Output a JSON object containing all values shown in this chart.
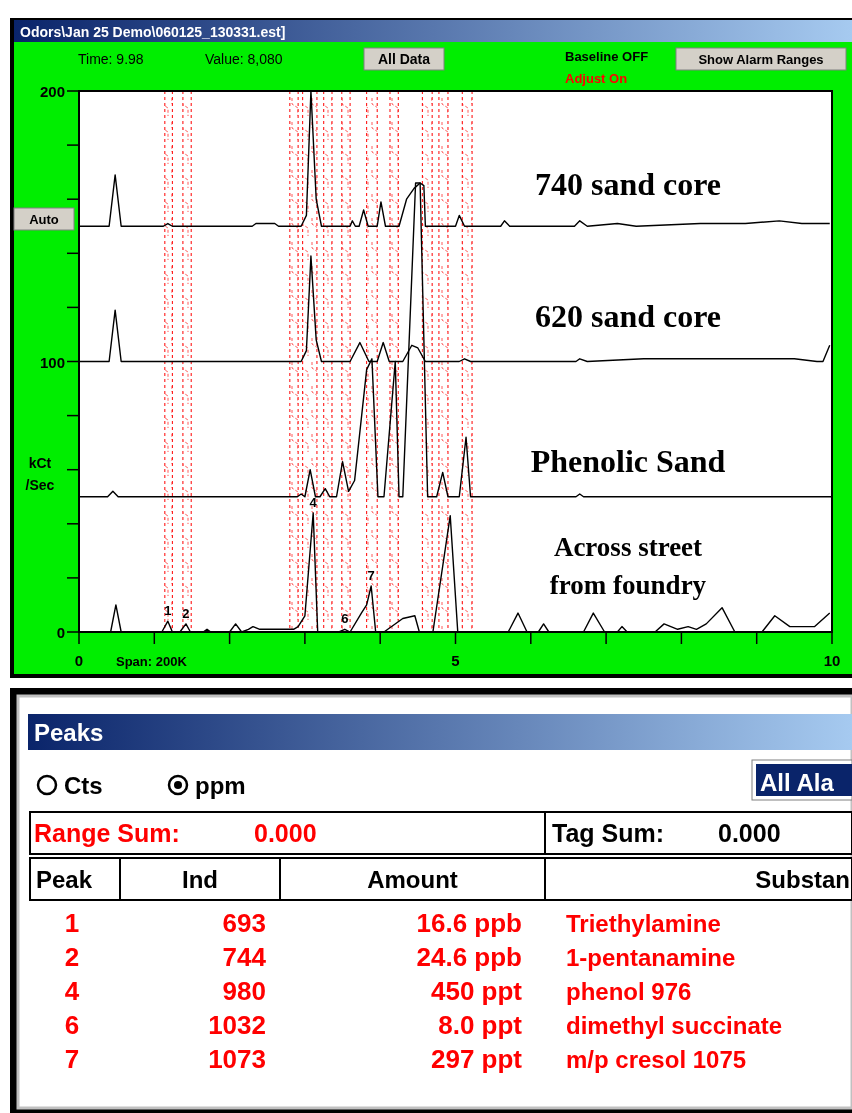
{
  "chart_data": [
    {
      "type": "line",
      "title": "Odors\\Jan 25 Demo\\060125_130331.est]",
      "ylabel": "kCt /Sec",
      "xlim": [
        0,
        10
      ],
      "ylim": [
        0,
        200
      ],
      "xticks": [
        0,
        {
          "value": 1,
          "label": null
        },
        {
          "value": 2,
          "label": null
        },
        {
          "value": 3,
          "label": null
        },
        {
          "value": 4,
          "label": null
        },
        5,
        {
          "value": 6,
          "label": null
        },
        {
          "value": 7,
          "label": null
        },
        {
          "value": 8,
          "label": null
        },
        {
          "value": 9,
          "label": null
        },
        10
      ],
      "yticks": [
        0,
        {
          "value": 20,
          "label": null
        },
        {
          "value": 40,
          "label": null
        },
        {
          "value": 60,
          "label": null
        },
        {
          "value": 80,
          "label": null
        },
        100,
        {
          "value": 120,
          "label": null
        },
        {
          "value": 140,
          "label": null
        },
        {
          "value": 160,
          "label": null
        },
        {
          "value": 180,
          "label": null
        },
        200
      ],
      "bands": [
        {
          "axis": "x",
          "from": 1.14,
          "to": 1.24,
          "color": "#ff0000"
        },
        {
          "axis": "x",
          "from": 1.38,
          "to": 1.49,
          "color": "#ff0000"
        },
        {
          "axis": "x",
          "from": 2.8,
          "to": 2.91,
          "color": "#ff0000"
        },
        {
          "axis": "x",
          "from": 2.97,
          "to": 3.16,
          "color": "#ff0000"
        },
        {
          "axis": "x",
          "from": 3.25,
          "to": 3.36,
          "color": "#ff0000"
        },
        {
          "axis": "x",
          "from": 3.49,
          "to": 3.6,
          "color": "#ff0000"
        },
        {
          "axis": "x",
          "from": 3.82,
          "to": 3.96,
          "color": "#ff0000"
        },
        {
          "axis": "x",
          "from": 4.13,
          "to": 4.24,
          "color": "#ff0000"
        },
        {
          "axis": "x",
          "from": 4.56,
          "to": 4.69,
          "color": "#ff0000"
        },
        {
          "axis": "x",
          "from": 4.78,
          "to": 4.9,
          "color": "#ff0000"
        },
        {
          "axis": "x",
          "from": 5.09,
          "to": 5.22,
          "color": "#ff0000"
        }
      ],
      "series": [
        {
          "name": "740 sand core",
          "color": "#000000",
          "x": [
            0,
            0.4,
            0.48,
            0.56,
            1.12,
            1.18,
            1.24,
            2.3,
            2.35,
            2.6,
            2.65,
            2.95,
            3.02,
            3.08,
            3.15,
            3.22,
            3.6,
            3.63,
            3.67,
            3.72,
            3.78,
            3.84,
            3.96,
            4.01,
            4.07,
            4.25,
            4.35,
            4.45,
            4.53,
            4.58,
            4.6,
            4.66,
            5.0,
            5.05,
            5.12,
            5.6,
            5.65,
            5.72,
            6.58,
            6.65,
            6.75,
            7.15,
            7.4,
            8.25,
            8.85,
            9.3,
            9.6,
            9.97
          ],
          "values": [
            150,
            150,
            169,
            150,
            150,
            151,
            150,
            150,
            151,
            151,
            150,
            150,
            154,
            200,
            160,
            150,
            150,
            152,
            150,
            150,
            156,
            150,
            150,
            159,
            150,
            150,
            160,
            164,
            166,
            165,
            150,
            150,
            150,
            154,
            150,
            150,
            152,
            150,
            150,
            152,
            150,
            151,
            150,
            151,
            151,
            152,
            151,
            151
          ]
        },
        {
          "name": "620 sand core",
          "color": "#000000",
          "x": [
            0,
            0.4,
            0.48,
            0.56,
            2.95,
            3.02,
            3.08,
            3.15,
            3.22,
            3.6,
            3.73,
            3.85,
            3.96,
            4.04,
            4.12,
            4.3,
            4.42,
            4.5,
            4.6,
            4.7,
            5.05,
            5.12,
            5.2,
            6.6,
            6.65,
            6.75,
            7.5,
            8.5,
            9.5,
            9.8,
            9.88,
            9.97
          ],
          "values": [
            100,
            100,
            119,
            100,
            100,
            104,
            139,
            108,
            100,
            100,
            107,
            100,
            100,
            107,
            100,
            100,
            106,
            105,
            100,
            100,
            100,
            101,
            100,
            100,
            101,
            100,
            101,
            101,
            101,
            100,
            100,
            106
          ]
        },
        {
          "name": "Phenolic Sand",
          "color": "#000000",
          "x": [
            0,
            0.38,
            0.45,
            0.52,
            2.9,
            2.95,
            3.0,
            3.07,
            3.14,
            3.2,
            3.27,
            3.33,
            3.42,
            3.5,
            3.58,
            3.66,
            3.82,
            3.89,
            3.97,
            4.05,
            4.2,
            4.25,
            4.3,
            4.47,
            4.53,
            4.63,
            4.75,
            4.83,
            4.9,
            5.05,
            5.14,
            5.2,
            6.6,
            6.65,
            6.7,
            10
          ],
          "values": [
            50,
            50,
            52,
            50,
            50,
            51,
            50,
            60,
            50,
            50,
            53,
            50,
            50,
            63,
            52,
            56,
            97,
            101,
            50,
            50,
            100,
            50,
            50,
            166,
            166,
            50,
            50,
            59,
            50,
            50,
            72,
            50,
            50,
            51,
            50,
            50
          ]
        },
        {
          "name": "Across street from foundry",
          "color": "#000000",
          "x": [
            0,
            0.42,
            0.49,
            0.56,
            1.1,
            1.18,
            1.24,
            1.34,
            1.42,
            1.48,
            1.65,
            1.7,
            1.75,
            2.0,
            2.08,
            2.16,
            2.25,
            2.31,
            2.4,
            2.6,
            2.85,
            2.91,
            3.0,
            3.11,
            3.17,
            3.45,
            3.53,
            3.6,
            3.75,
            3.82,
            3.88,
            3.94,
            4.05,
            4.3,
            4.46,
            4.52,
            4.7,
            4.93,
            5.03,
            5.7,
            5.83,
            5.95,
            6.1,
            6.17,
            6.24,
            6.7,
            6.83,
            6.98,
            7.15,
            7.21,
            7.28,
            7.65,
            7.77,
            7.95,
            8.09,
            8.2,
            8.33,
            8.54,
            8.71,
            9.07,
            9.24,
            9.44,
            9.77,
            9.97
          ],
          "values": [
            0,
            0,
            10,
            0,
            0,
            4,
            0,
            0,
            3,
            0,
            0,
            1,
            0,
            0,
            3,
            0,
            1,
            2,
            1,
            1,
            1,
            2,
            6,
            44,
            0,
            0,
            1,
            0,
            7,
            10,
            17,
            0,
            0,
            5,
            6,
            0,
            0,
            43,
            0,
            0,
            7,
            0,
            0,
            3,
            0,
            0,
            7,
            0,
            0,
            2,
            0,
            0,
            3,
            1,
            2,
            1,
            3,
            9,
            0,
            0,
            6,
            2,
            2,
            7
          ]
        }
      ],
      "annotations": [
        "Time:  9.98",
        "Value:  8,080",
        "All Data",
        "Baseline OFF",
        "Adjust On",
        "Show Alarm Ranges",
        "Auto",
        "Span: 200K",
        {
          "text": "1",
          "x": 1.18,
          "y": 4
        },
        {
          "text": "2",
          "x": 1.42,
          "y": 3
        },
        {
          "text": "4",
          "x": 3.11,
          "y": 44
        },
        {
          "text": "6",
          "x": 3.53,
          "y": 1
        },
        {
          "text": "7",
          "x": 3.88,
          "y": 17
        }
      ]
    },
    {
      "type": "other",
      "title": "Peaks",
      "categories": [
        "Peak",
        "Ind",
        "Amount",
        "Substan"
      ],
      "annotations": [
        "Cts",
        "ppm",
        "All Ala",
        "Range Sum:",
        "0.000",
        "Tag Sum:",
        "0.000",
        "1",
        "693",
        "16.6 ppb",
        "Triethylamine",
        "2",
        "744",
        "24.6 ppb",
        "1-pentanamine",
        "4",
        "980",
        "450 ppt",
        "phenol 976",
        "6",
        "1032",
        "8.0 ppt",
        "dimethyl succinate",
        "7",
        "1073",
        "297 ppt",
        "m/p cresol 1075"
      ]
    }
  ]
}
